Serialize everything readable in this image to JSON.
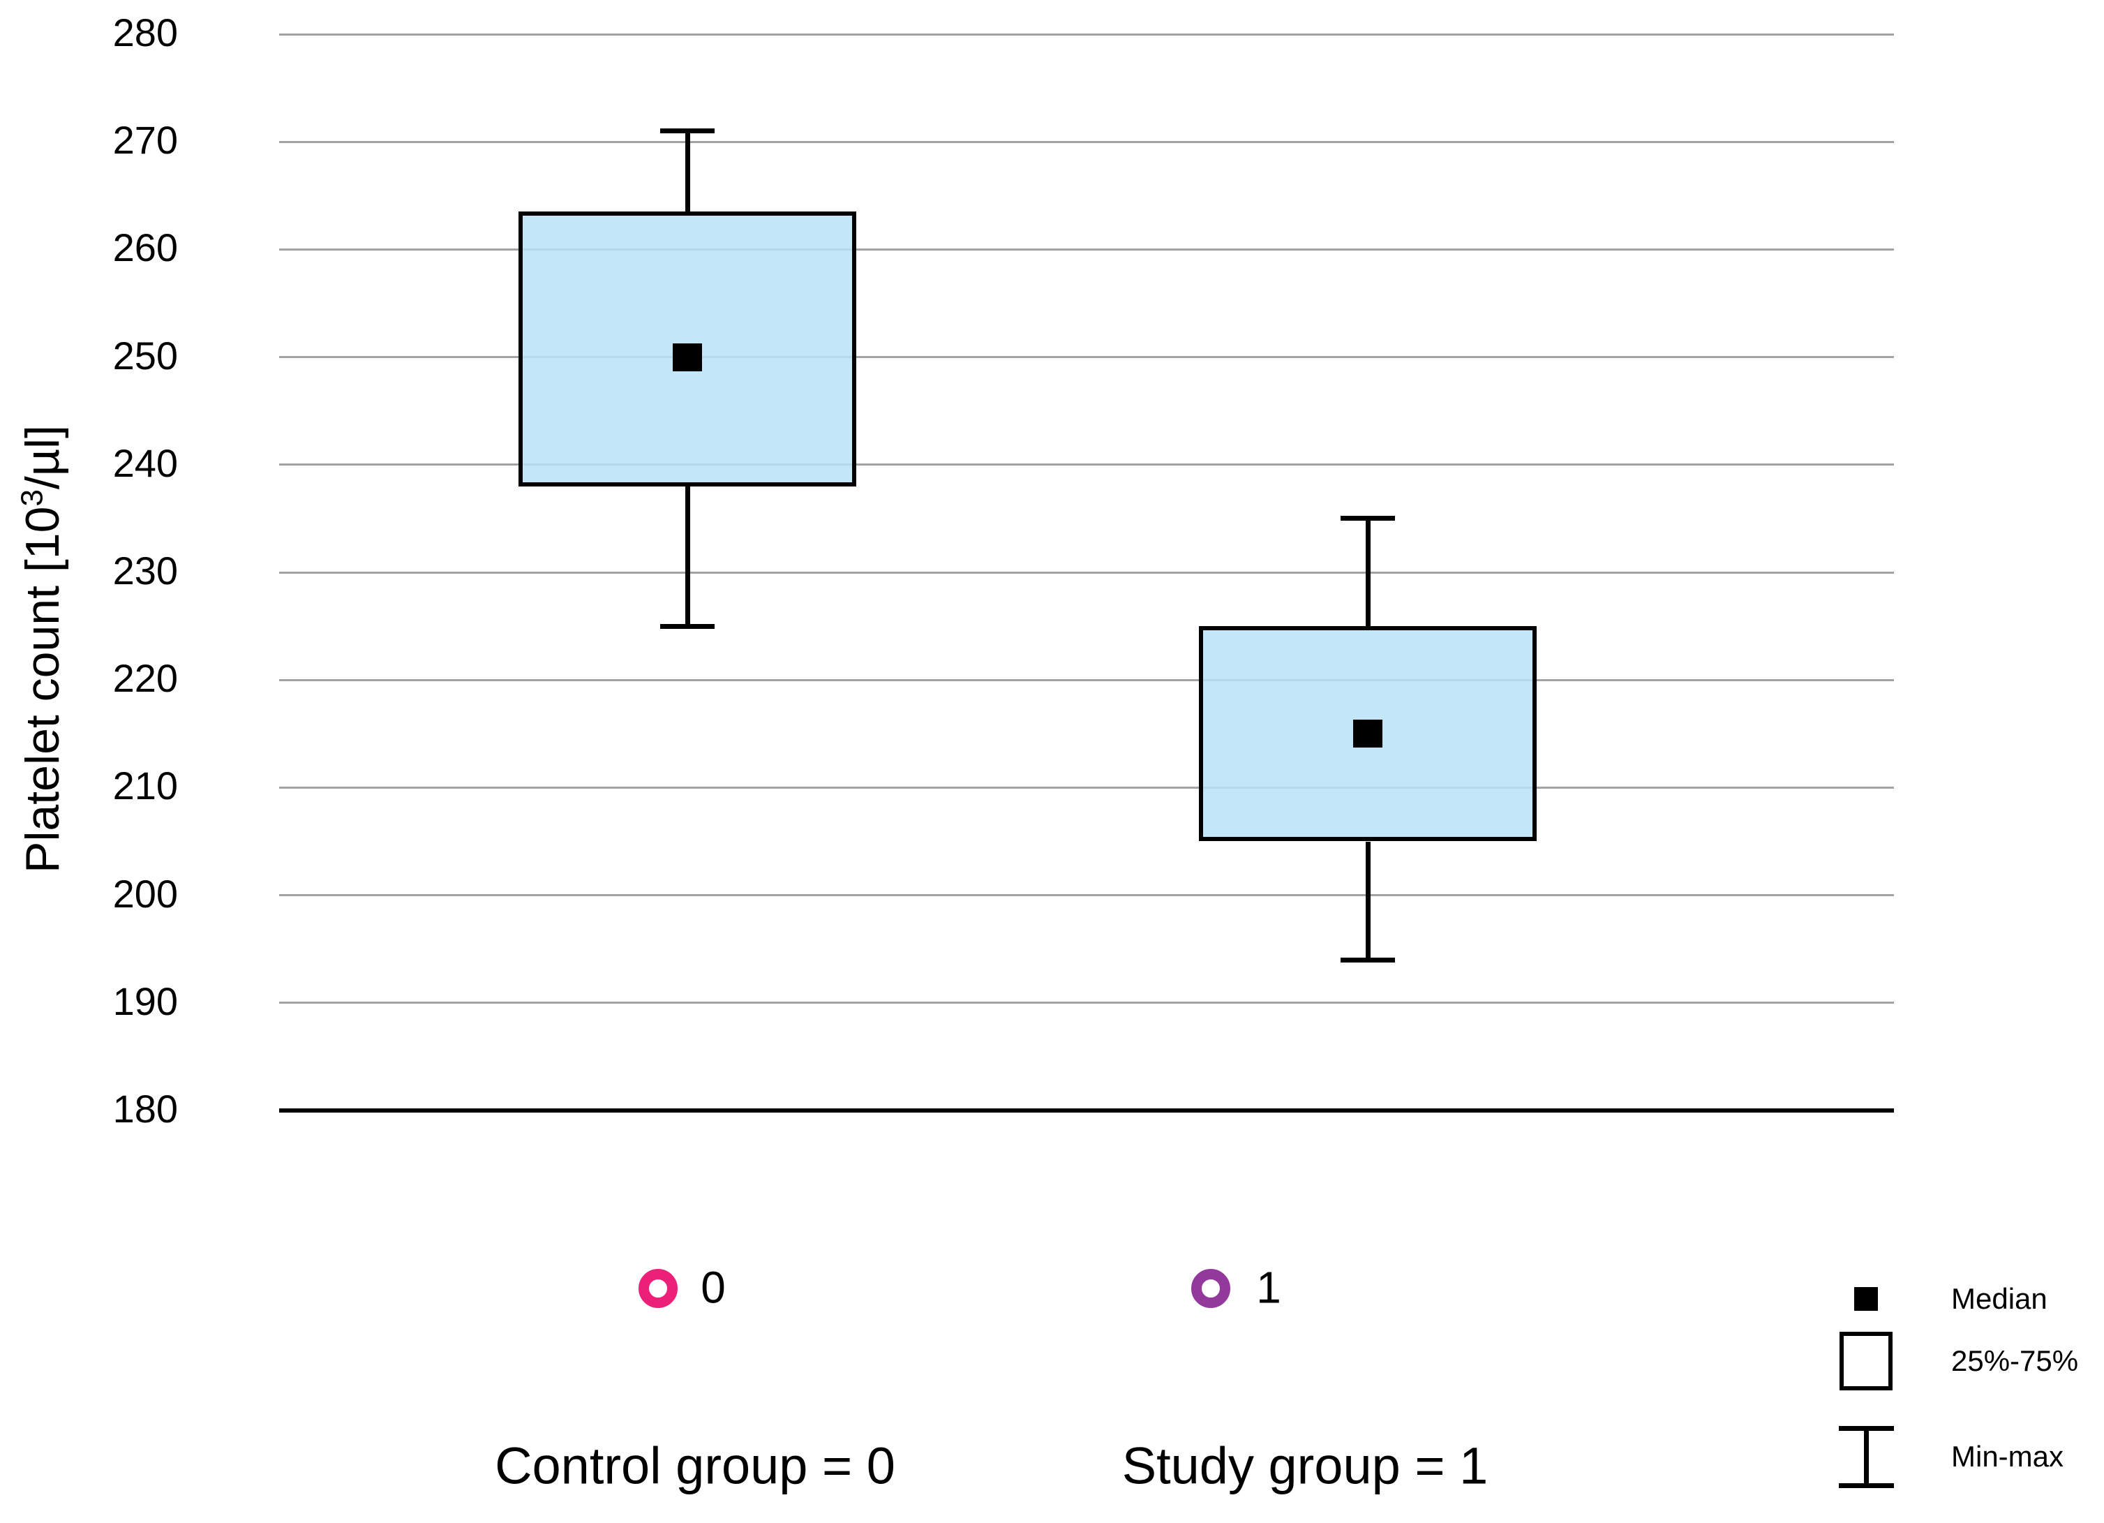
{
  "chart_data": {
    "type": "boxplot",
    "title": "",
    "ylabel": "Platelet count [10^3/µl]",
    "ylabel_parts": {
      "prefix": "Platelet count [10",
      "sup": "3",
      "suffix": "/µl]"
    },
    "ylim": [
      180,
      280
    ],
    "yticks": [
      280,
      270,
      260,
      250,
      240,
      230,
      220,
      210,
      200,
      190,
      180
    ],
    "grid": true,
    "legend_position": "bottom-right",
    "series": [
      {
        "marker_label": "0",
        "marker_color": "#ED2079",
        "group_label": "Control group = 0",
        "min": 225,
        "q1": 238,
        "median": 250,
        "q3": 263.5,
        "max": 271
      },
      {
        "marker_label": "1",
        "marker_color": "#93399B",
        "group_label": "Study group = 1",
        "min": 194,
        "q1": 205,
        "median": 215,
        "q3": 225,
        "max": 235
      }
    ],
    "legend": [
      {
        "symbol": "filled-square",
        "label": "Median"
      },
      {
        "symbol": "open-square",
        "label": "25%-75%"
      },
      {
        "symbol": "whisker",
        "label": "Min-max"
      }
    ],
    "colors": {
      "box_fill": "#B8E3F7",
      "box_border": "#000000",
      "gridline": "#A3A3A3",
      "axis_line": "#000000",
      "median_marker": "#000000"
    }
  }
}
